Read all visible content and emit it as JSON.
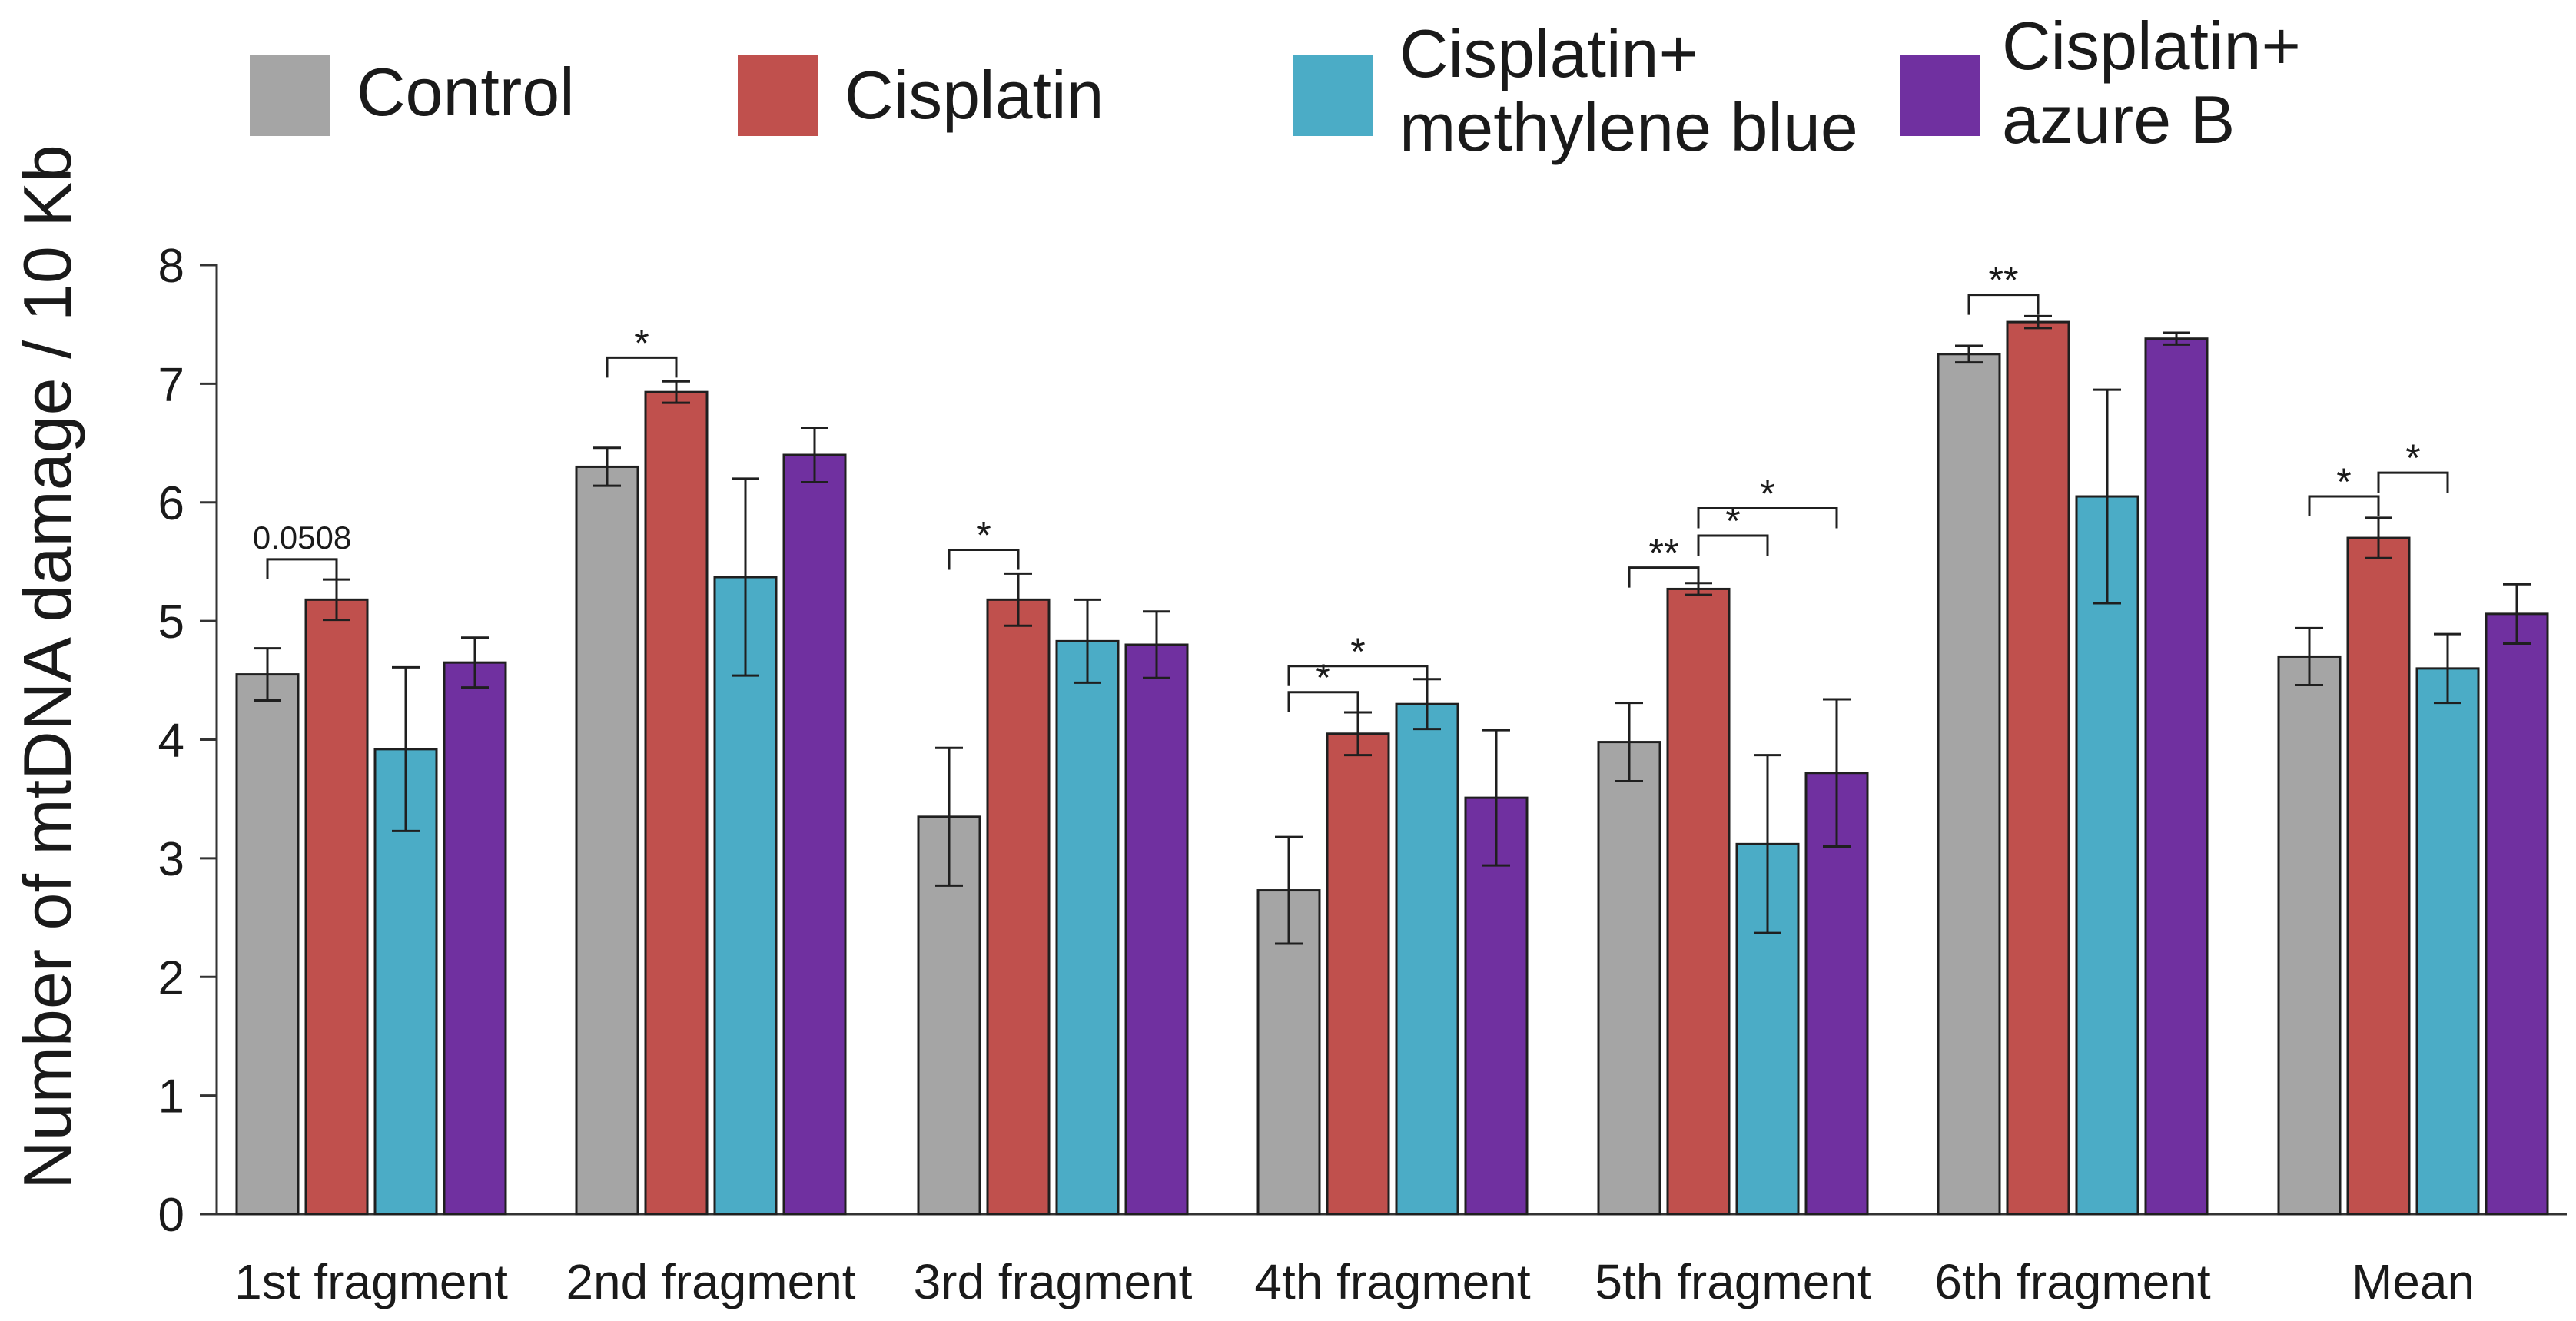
{
  "chart_data": {
    "type": "bar",
    "title": "",
    "xlabel": "",
    "ylabel": "Number of mtDNA damage / 10 Kb",
    "ylim": [
      0,
      8
    ],
    "yticks": [
      "0",
      "1",
      "2",
      "3",
      "4",
      "5",
      "6",
      "7",
      "8"
    ],
    "grid": false,
    "legend_position": "top",
    "categories": [
      "1st fragment",
      "2nd fragment",
      "3rd fragment",
      "4th fragment",
      "5th fragment",
      "6th fragment",
      "Mean"
    ],
    "series": [
      {
        "name": "Control",
        "color": "#a5a5a5",
        "values": [
          4.55,
          6.3,
          3.35,
          2.73,
          3.98,
          7.25,
          4.7
        ],
        "errors": [
          0.22,
          0.16,
          0.58,
          0.45,
          0.33,
          0.07,
          0.24
        ]
      },
      {
        "name": "Cisplatin",
        "color": "#c0504d",
        "values": [
          5.18,
          6.93,
          5.18,
          4.05,
          5.27,
          7.52,
          5.7
        ],
        "errors": [
          0.17,
          0.09,
          0.22,
          0.18,
          0.05,
          0.05,
          0.17
        ]
      },
      {
        "name": "Cisplatin+\nmethylene blue",
        "color": "#4bacc6",
        "values": [
          3.92,
          5.37,
          4.83,
          4.3,
          3.12,
          6.05,
          4.6
        ],
        "errors": [
          0.69,
          0.83,
          0.35,
          0.21,
          0.75,
          0.9,
          0.29
        ]
      },
      {
        "name": "Cisplatin+\nazure B",
        "color": "#7030a0",
        "values": [
          4.65,
          6.4,
          4.8,
          3.51,
          3.72,
          7.38,
          5.06
        ],
        "errors": [
          0.21,
          0.23,
          0.28,
          0.57,
          0.62,
          0.05,
          0.25
        ]
      }
    ],
    "annotations": [
      {
        "category": 0,
        "from_series": 0,
        "to_series": 1,
        "label": "0.0508",
        "level": 5.52
      },
      {
        "category": 1,
        "from_series": 0,
        "to_series": 1,
        "label": "*",
        "level": 7.22
      },
      {
        "category": 2,
        "from_series": 0,
        "to_series": 1,
        "label": "*",
        "level": 5.6
      },
      {
        "category": 3,
        "from_series": 0,
        "to_series": 1,
        "label": "*",
        "level": 4.4
      },
      {
        "category": 3,
        "from_series": 0,
        "to_series": 2,
        "label": "*",
        "level": 4.62
      },
      {
        "category": 4,
        "from_series": 0,
        "to_series": 1,
        "label": "**",
        "level": 5.45
      },
      {
        "category": 4,
        "from_series": 1,
        "to_series": 2,
        "label": "*",
        "level": 5.72
      },
      {
        "category": 4,
        "from_series": 1,
        "to_series": 3,
        "label": "*",
        "level": 5.95
      },
      {
        "category": 5,
        "from_series": 0,
        "to_series": 1,
        "label": "**",
        "level": 7.75
      },
      {
        "category": 6,
        "from_series": 0,
        "to_series": 1,
        "label": "*",
        "level": 6.05
      },
      {
        "category": 6,
        "from_series": 1,
        "to_series": 2,
        "label": "*",
        "level": 6.25
      }
    ]
  }
}
